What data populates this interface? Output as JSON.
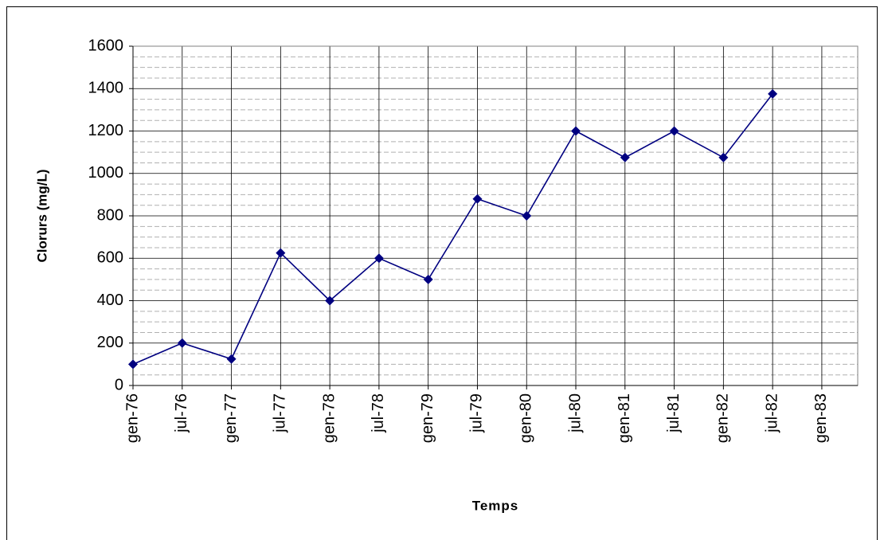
{
  "chart_data": {
    "type": "line",
    "y_label": "Clorurs (mg/L)",
    "x_label": "Temps",
    "categories": [
      "gen-76",
      "jul-76",
      "gen-77",
      "jul-77",
      "gen-78",
      "jul-78",
      "gen-79",
      "jul-79",
      "gen-80",
      "jul-80",
      "gen-81",
      "jul-81",
      "gen-82",
      "jul-82",
      "gen-83"
    ],
    "series": [
      {
        "name": "Clorurs",
        "color": "#000080",
        "values": [
          100,
          200,
          125,
          625,
          400,
          600,
          500,
          880,
          800,
          1200,
          1075,
          1200,
          1075,
          1375,
          null
        ]
      }
    ],
    "ylim": [
      0,
      1600
    ],
    "yticks": [
      0,
      200,
      400,
      600,
      800,
      1000,
      1200,
      1400,
      1600
    ],
    "grid": true
  }
}
